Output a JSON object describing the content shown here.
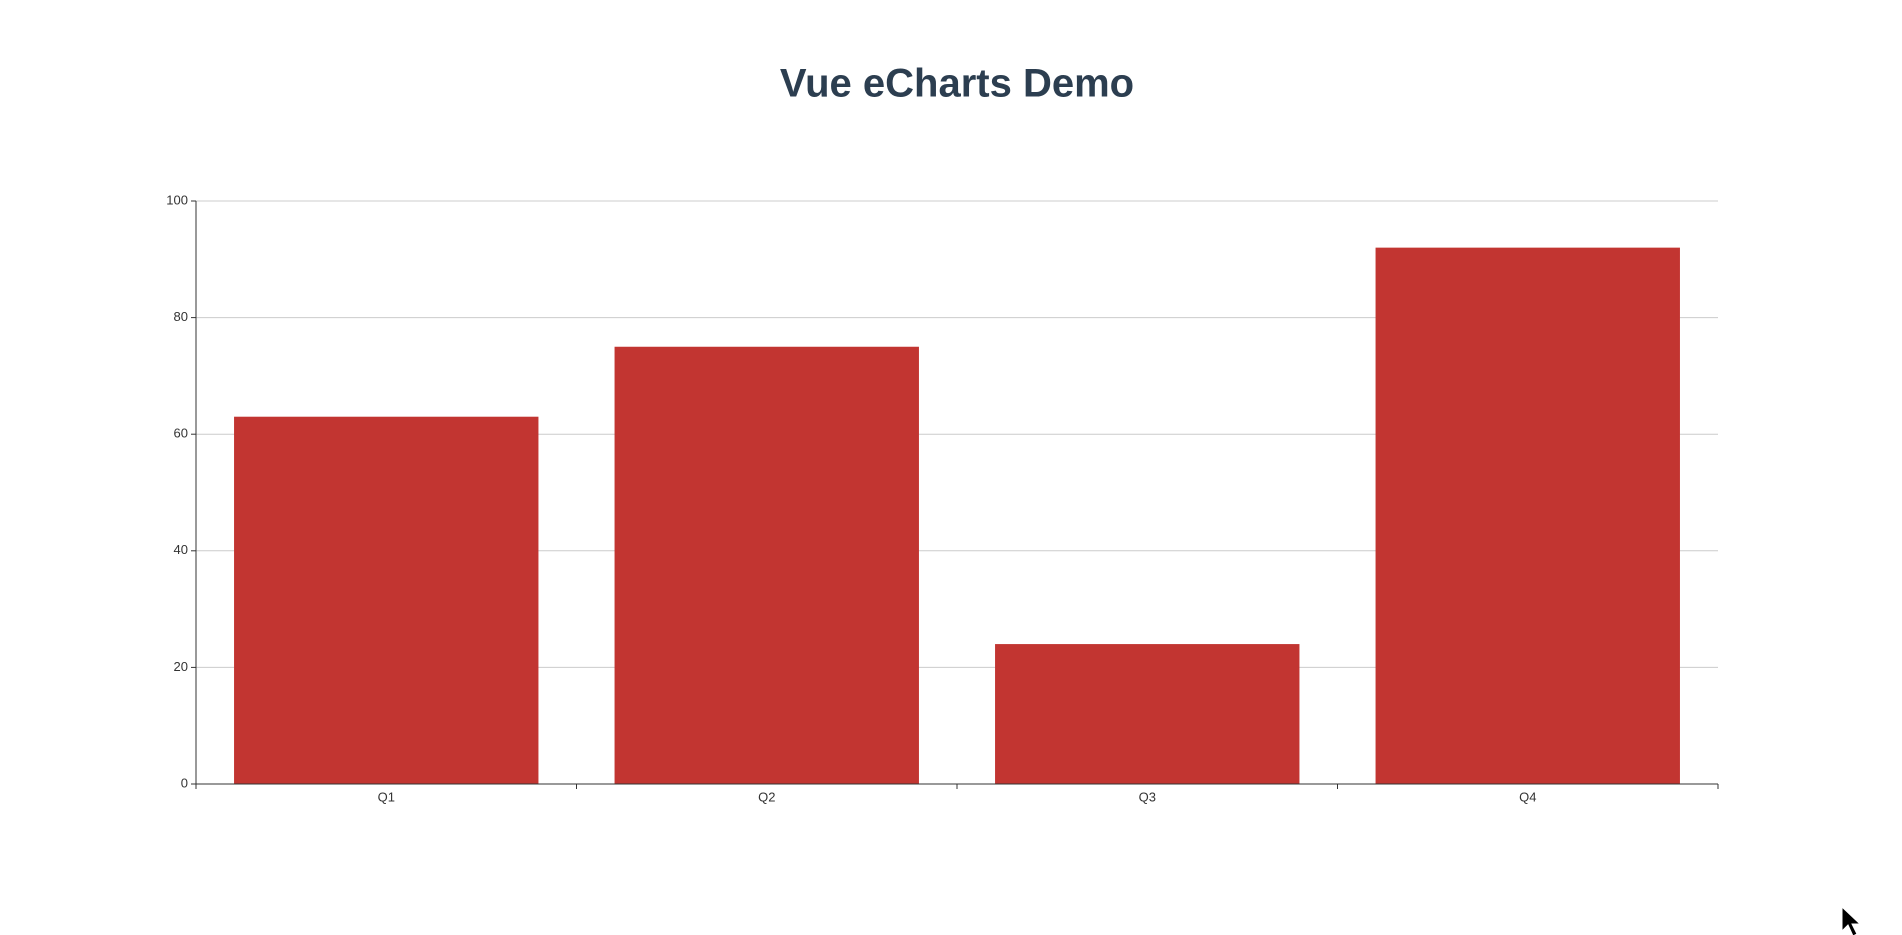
{
  "chart_data": {
    "type": "bar",
    "title": "Vue eCharts Demo",
    "categories": [
      "Q1",
      "Q2",
      "Q3",
      "Q4"
    ],
    "values": [
      63,
      75,
      24,
      92
    ],
    "color": "#c23531",
    "ylim": [
      0,
      100
    ],
    "yticks": [
      0,
      20,
      40,
      60,
      80,
      100
    ],
    "grid": true
  }
}
